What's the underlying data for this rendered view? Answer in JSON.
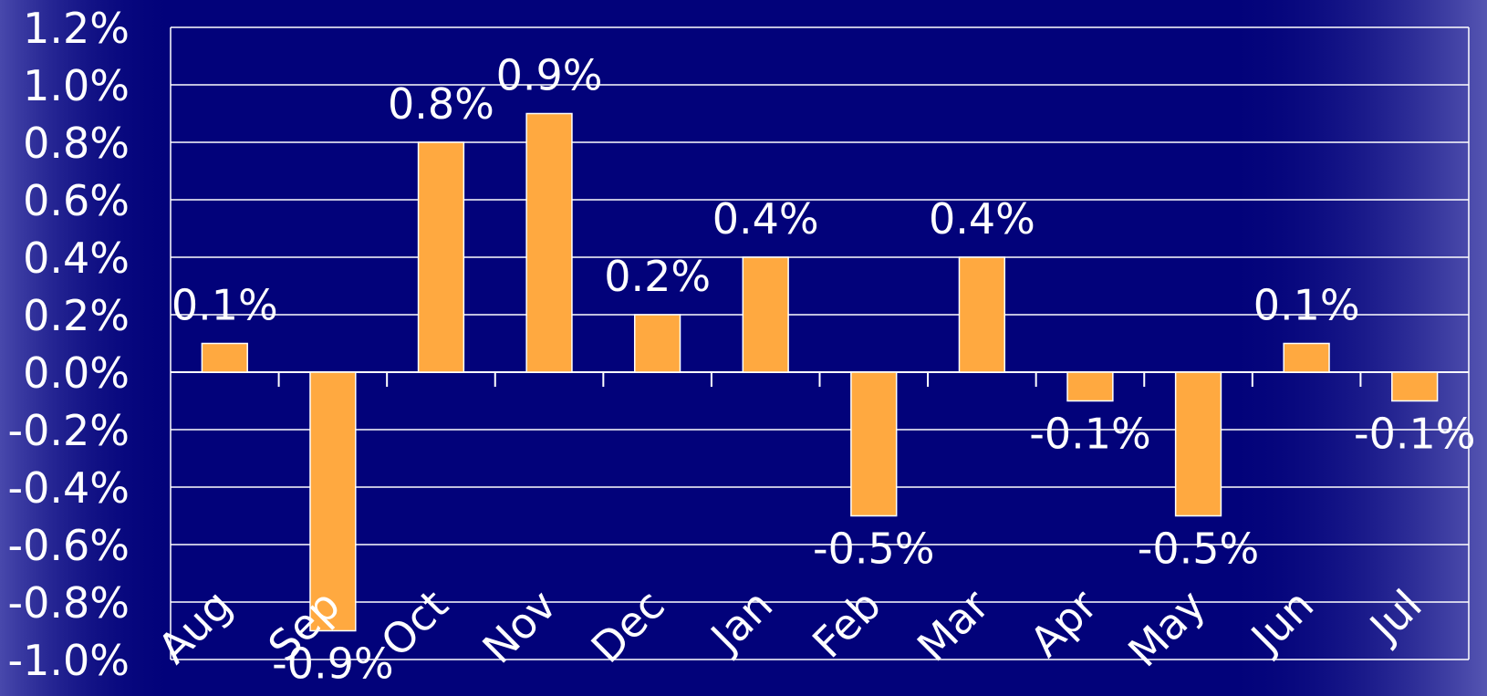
{
  "chart_data": {
    "type": "bar",
    "categories": [
      "Aug",
      "Sep",
      "Oct",
      "Nov",
      "Dec",
      "Jan",
      "Feb",
      "Mar",
      "Apr",
      "May",
      "Jun",
      "Jul"
    ],
    "values": [
      0.1,
      -0.9,
      0.8,
      0.9,
      0.2,
      0.4,
      -0.5,
      0.4,
      -0.1,
      -0.5,
      0.1,
      -0.1
    ],
    "value_labels": [
      "0.1%",
      "-0.9%",
      "0.8%",
      "0.9%",
      "0.2%",
      "0.4%",
      "-0.5%",
      "0.4%",
      "-0.1%",
      "-0.5%",
      "0.1%",
      "-0.1%"
    ],
    "color": "#ffa940",
    "ylim": [
      -1.0,
      1.2
    ],
    "yticks": [
      {
        "value": -1.0,
        "label": "-1.0%"
      },
      {
        "value": -0.8,
        "label": "-0.8%"
      },
      {
        "value": -0.6,
        "label": "-0.6%"
      },
      {
        "value": -0.4,
        "label": "-0.4%"
      },
      {
        "value": -0.2,
        "label": "-0.2%"
      },
      {
        "value": 0.0,
        "label": "0.0%"
      },
      {
        "value": 0.2,
        "label": "0.2%"
      },
      {
        "value": 0.4,
        "label": "0.4%"
      },
      {
        "value": 0.6,
        "label": "0.6%"
      },
      {
        "value": 0.8,
        "label": "0.8%"
      },
      {
        "value": 1.0,
        "label": "1.0%"
      },
      {
        "value": 1.2,
        "label": "1.2%"
      }
    ],
    "grid": true
  }
}
